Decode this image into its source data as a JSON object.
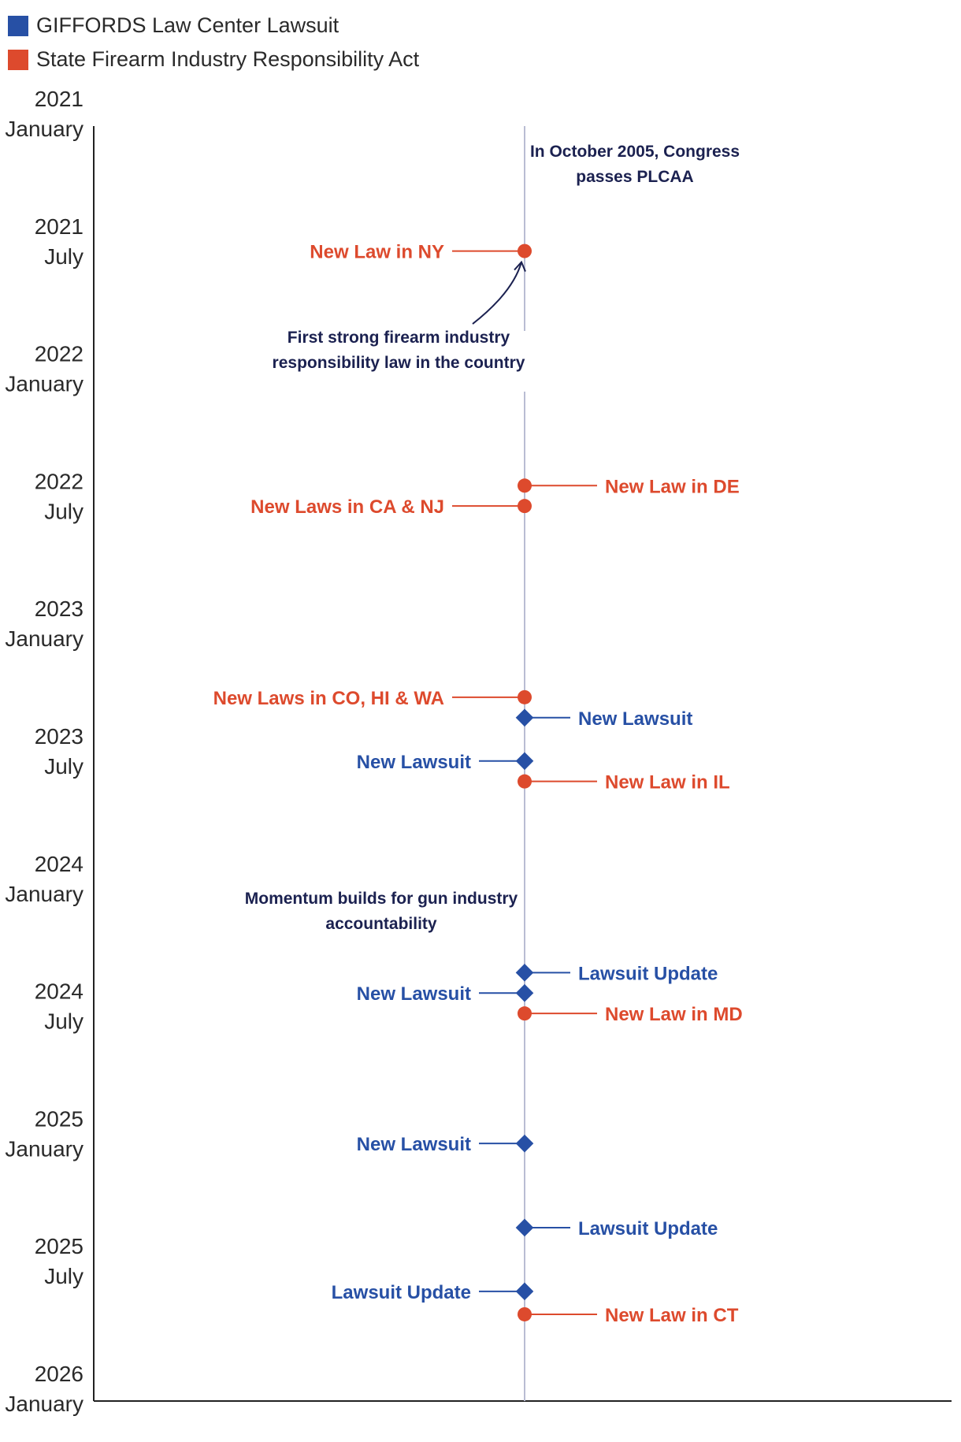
{
  "legend": [
    {
      "label": "GIFFORDS Law Center Lawsuit",
      "color": "#2750a5",
      "marker": "diamond"
    },
    {
      "label": "State Firearm Industry Responsibility Act",
      "color": "#dd4a2d",
      "marker": "circle"
    }
  ],
  "chart_data": {
    "type": "timeline",
    "orientation": "vertical",
    "y_range": [
      2021.0,
      2026.0
    ],
    "ticks": [
      {
        "value": 2021.0,
        "year": "2021",
        "label": "January"
      },
      {
        "value": 2021.5,
        "year": "2021",
        "label": "July"
      },
      {
        "value": 2022.0,
        "year": "2022",
        "label": "January"
      },
      {
        "value": 2022.5,
        "year": "2022",
        "label": "July"
      },
      {
        "value": 2023.0,
        "year": "2023",
        "label": "January"
      },
      {
        "value": 2023.5,
        "year": "2023",
        "label": "July"
      },
      {
        "value": 2024.0,
        "year": "2024",
        "label": "January"
      },
      {
        "value": 2024.5,
        "year": "2024",
        "label": "July"
      },
      {
        "value": 2025.0,
        "year": "2025",
        "label": "January"
      },
      {
        "value": 2025.5,
        "year": "2025",
        "label": "July"
      },
      {
        "value": 2026.0,
        "year": "2026",
        "label": "January"
      }
    ],
    "events": [
      {
        "date": 2021.49,
        "label": "New Law in NY",
        "type": "law",
        "side": "left"
      },
      {
        "date": 2022.41,
        "label": "New Law in DE",
        "type": "law",
        "side": "right"
      },
      {
        "date": 2022.49,
        "label": "New Laws in CA & NJ",
        "type": "law",
        "side": "left"
      },
      {
        "date": 2023.24,
        "label": "New Laws in CO, HI & WA",
        "type": "law",
        "side": "left"
      },
      {
        "date": 2023.32,
        "label": "New Lawsuit",
        "type": "lawsuit",
        "side": "right"
      },
      {
        "date": 2023.49,
        "label": "New Lawsuit",
        "type": "lawsuit",
        "side": "left"
      },
      {
        "date": 2023.57,
        "label": "New Law in IL",
        "type": "law",
        "side": "right"
      },
      {
        "date": 2024.32,
        "label": "Lawsuit Update",
        "type": "lawsuit",
        "side": "right"
      },
      {
        "date": 2024.4,
        "label": "New Lawsuit",
        "type": "lawsuit",
        "side": "left"
      },
      {
        "date": 2024.48,
        "label": "New Law in MD",
        "type": "law",
        "side": "right"
      },
      {
        "date": 2024.99,
        "label": "New Lawsuit",
        "type": "lawsuit",
        "side": "left"
      },
      {
        "date": 2025.32,
        "label": "Lawsuit Update",
        "type": "lawsuit",
        "side": "right"
      },
      {
        "date": 2025.57,
        "label": "Lawsuit Update",
        "type": "lawsuit",
        "side": "left"
      },
      {
        "date": 2025.66,
        "label": "New Law in CT",
        "type": "law",
        "side": "right"
      }
    ],
    "annotations": [
      {
        "id": "plcaa",
        "date": 2021.12,
        "lines": [
          "In October 2005, Congress",
          "passes PLCAA"
        ],
        "align": "right-of-axis"
      },
      {
        "id": "first-law",
        "date": 2021.85,
        "lines": [
          "First strong firearm industry",
          "responsibility law in the country"
        ],
        "align": "left-of-axis",
        "arrow_to": "New Law in NY"
      },
      {
        "id": "momentum",
        "date": 2024.05,
        "lines": [
          "Momentum builds for gun industry",
          "accountability"
        ],
        "align": "left-of-axis"
      }
    ]
  }
}
